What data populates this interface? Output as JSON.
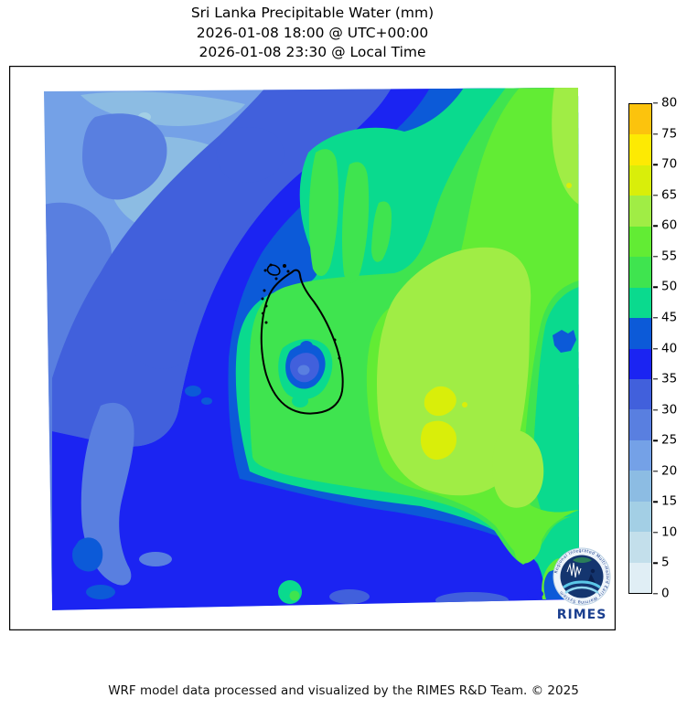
{
  "figure": {
    "title_line1": "Sri Lanka Precipitable Water (mm)",
    "title_line2": "2026-01-08 18:00 @ UTC+00:00",
    "title_line3": "2026-01-08 23:30 @ Local Time",
    "footer": "WRF model data processed and visualized by the RIMES R&D Team. © 2025"
  },
  "map": {
    "region": "Sri Lanka",
    "variable": "Precipitable Water",
    "unit": "mm",
    "outline_color": "#000000"
  },
  "logo": {
    "name": "RIMES",
    "ring_text": "Regional Integrated Multi-Hazard Early Warning System",
    "text_color": "#1b3f8f"
  },
  "colorbar": {
    "min": 0,
    "max": 80,
    "ticks": [
      0,
      5,
      10,
      15,
      20,
      25,
      30,
      35,
      40,
      45,
      50,
      55,
      60,
      65,
      70,
      75,
      80
    ],
    "levels": [
      {
        "min": 0,
        "max": 5,
        "color": "#e0eef5"
      },
      {
        "min": 5,
        "max": 10,
        "color": "#c3dfeb"
      },
      {
        "min": 10,
        "max": 15,
        "color": "#a3cfe5"
      },
      {
        "min": 15,
        "max": 20,
        "color": "#8cbce3"
      },
      {
        "min": 20,
        "max": 25,
        "color": "#74a1e7"
      },
      {
        "min": 25,
        "max": 30,
        "color": "#597fe0"
      },
      {
        "min": 30,
        "max": 35,
        "color": "#4160dc"
      },
      {
        "min": 35,
        "max": 40,
        "color": "#1b24f2"
      },
      {
        "min": 40,
        "max": 45,
        "color": "#0c5ad8"
      },
      {
        "min": 45,
        "max": 50,
        "color": "#0ada8e"
      },
      {
        "min": 50,
        "max": 55,
        "color": "#3fe44f"
      },
      {
        "min": 55,
        "max": 60,
        "color": "#62ec34"
      },
      {
        "min": 60,
        "max": 65,
        "color": "#a0ed45"
      },
      {
        "min": 65,
        "max": 70,
        "color": "#d9ee0a"
      },
      {
        "min": 70,
        "max": 75,
        "color": "#fdea03"
      },
      {
        "min": 75,
        "max": 80,
        "color": "#fcc30d"
      }
    ]
  },
  "chart_data": {
    "type": "heatmap",
    "title": "Sri Lanka Precipitable Water (mm)",
    "units": "mm",
    "colorbar_range": [
      0,
      80
    ],
    "colorbar_ticks": [
      0,
      5,
      10,
      15,
      20,
      25,
      30,
      35,
      40,
      45,
      50,
      55,
      60,
      65,
      70,
      75,
      80
    ],
    "legend_position": "right",
    "regions_approx_mm": [
      {
        "area": "northwest quadrant (mottled light blues)",
        "range": [
          15,
          30
        ]
      },
      {
        "area": "west and southwest band",
        "range": [
          30,
          40
        ]
      },
      {
        "area": "southern bottom band",
        "range": [
          35,
          45
        ]
      },
      {
        "area": "arc band northwest of green core",
        "range": [
          40,
          50
        ]
      },
      {
        "area": "center and east (green core)",
        "range": [
          55,
          65
        ]
      },
      {
        "area": "local maxima east of island (yellow-green patches)",
        "range": [
          65,
          70
        ]
      },
      {
        "area": "sri lanka island interior (central blob)",
        "range": [
          30,
          50
        ]
      },
      {
        "area": "east edge mid-height column",
        "range": [
          40,
          50
        ]
      },
      {
        "area": "northeast corner",
        "range": [
          55,
          65
        ]
      }
    ]
  }
}
